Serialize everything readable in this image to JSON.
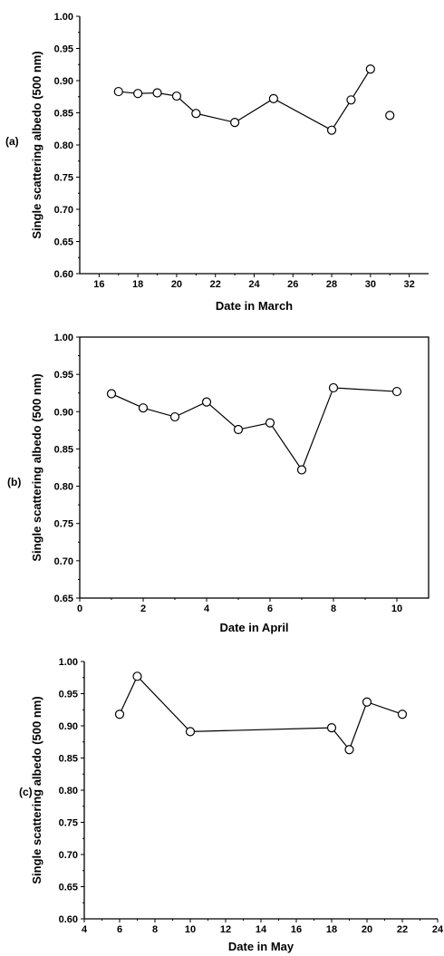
{
  "chart_data": [
    {
      "type": "line",
      "panel_label": "(a)",
      "xlabel": "Date in March",
      "ylabel": "Single scattering albedo (500 nm)",
      "xlim": [
        15,
        33
      ],
      "ylim": [
        0.6,
        1.0
      ],
      "xticks": [
        16,
        18,
        20,
        22,
        24,
        26,
        28,
        30,
        32
      ],
      "yticks": [
        0.6,
        0.65,
        0.7,
        0.75,
        0.8,
        0.85,
        0.9,
        0.95,
        1.0
      ],
      "x": [
        17,
        18,
        19,
        20,
        21,
        23,
        25,
        28,
        29,
        30
      ],
      "y": [
        0.883,
        0.88,
        0.881,
        0.876,
        0.849,
        0.835,
        0.872,
        0.823,
        0.87,
        0.918
      ],
      "isolated_points": {
        "x": [
          31
        ],
        "y": [
          0.846
        ]
      },
      "marker": "open-circle",
      "grid": false
    },
    {
      "type": "line",
      "panel_label": "(b)",
      "xlabel": "Date in April",
      "ylabel": "Single scattering albedo (500 nm)",
      "xlim": [
        0,
        11
      ],
      "ylim": [
        0.65,
        1.0
      ],
      "xticks": [
        0,
        2,
        4,
        6,
        8,
        10
      ],
      "yticks": [
        0.65,
        0.7,
        0.75,
        0.8,
        0.85,
        0.9,
        0.95,
        1.0
      ],
      "x": [
        1,
        2,
        3,
        4,
        5,
        6,
        7,
        8,
        10
      ],
      "y": [
        0.924,
        0.905,
        0.893,
        0.913,
        0.876,
        0.885,
        0.822,
        0.932,
        0.927
      ],
      "marker": "open-circle",
      "grid": false
    },
    {
      "type": "line",
      "panel_label": "(c)",
      "xlabel": "Date in May",
      "ylabel": "Single scattering albedo (500 nm)",
      "xlim": [
        4,
        24
      ],
      "ylim": [
        0.6,
        1.0
      ],
      "xticks": [
        4,
        6,
        8,
        10,
        12,
        14,
        16,
        18,
        20,
        22,
        24
      ],
      "yticks": [
        0.6,
        0.65,
        0.7,
        0.75,
        0.8,
        0.85,
        0.9,
        0.95,
        1.0
      ],
      "x": [
        6,
        7,
        10,
        18,
        19,
        20,
        22
      ],
      "y": [
        0.918,
        0.977,
        0.891,
        0.897,
        0.863,
        0.937,
        0.918
      ],
      "marker": "open-circle",
      "grid": false
    }
  ]
}
